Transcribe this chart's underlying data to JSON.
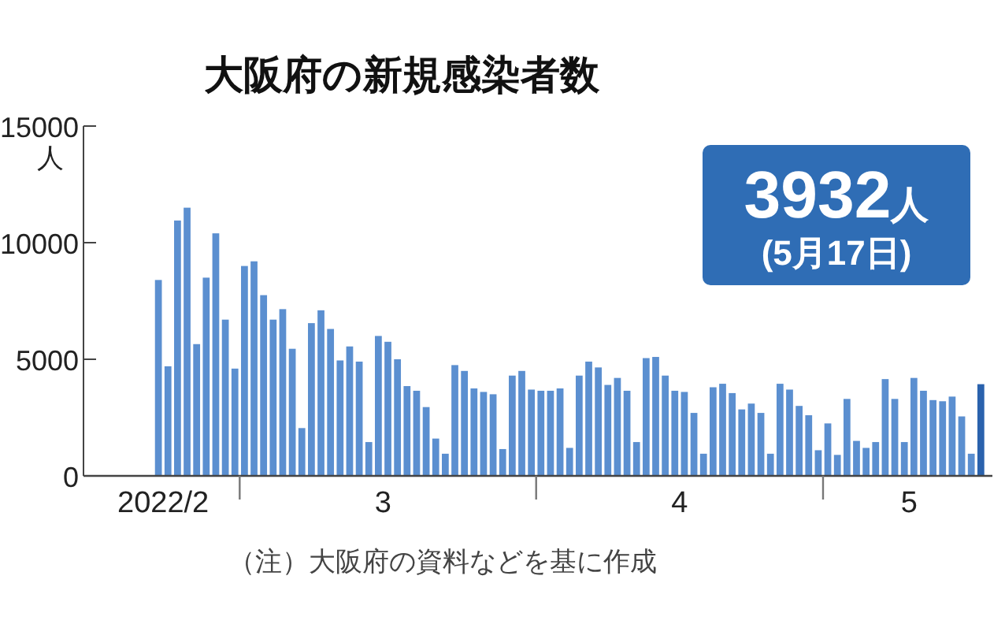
{
  "chart_data": {
    "type": "bar",
    "title": "大阪府の新規感染者数",
    "ylabel": "人",
    "annotations": [
      "3932人",
      "(5月17日)",
      "（注）大阪府の資料などを基に作成"
    ],
    "x": [
      "2022-02-20",
      "2022-02-21",
      "2022-02-22",
      "2022-02-23",
      "2022-02-24",
      "2022-02-25",
      "2022-02-26",
      "2022-02-27",
      "2022-02-28",
      "2022-03-01",
      "2022-03-02",
      "2022-03-03",
      "2022-03-04",
      "2022-03-05",
      "2022-03-06",
      "2022-03-07",
      "2022-03-08",
      "2022-03-09",
      "2022-03-10",
      "2022-03-11",
      "2022-03-12",
      "2022-03-13",
      "2022-03-14",
      "2022-03-15",
      "2022-03-16",
      "2022-03-17",
      "2022-03-18",
      "2022-03-19",
      "2022-03-20",
      "2022-03-21",
      "2022-03-22",
      "2022-03-23",
      "2022-03-24",
      "2022-03-25",
      "2022-03-26",
      "2022-03-27",
      "2022-03-28",
      "2022-03-29",
      "2022-03-30",
      "2022-03-31",
      "2022-04-01",
      "2022-04-02",
      "2022-04-03",
      "2022-04-04",
      "2022-04-05",
      "2022-04-06",
      "2022-04-07",
      "2022-04-08",
      "2022-04-09",
      "2022-04-10",
      "2022-04-11",
      "2022-04-12",
      "2022-04-13",
      "2022-04-14",
      "2022-04-15",
      "2022-04-16",
      "2022-04-17",
      "2022-04-18",
      "2022-04-19",
      "2022-04-20",
      "2022-04-21",
      "2022-04-22",
      "2022-04-23",
      "2022-04-24",
      "2022-04-25",
      "2022-04-26",
      "2022-04-27",
      "2022-04-28",
      "2022-04-29",
      "2022-04-30",
      "2022-05-01",
      "2022-05-02",
      "2022-05-03",
      "2022-05-04",
      "2022-05-05",
      "2022-05-06",
      "2022-05-07",
      "2022-05-08",
      "2022-05-09",
      "2022-05-10",
      "2022-05-11",
      "2022-05-12",
      "2022-05-13",
      "2022-05-14",
      "2022-05-15",
      "2022-05-16",
      "2022-05-17"
    ],
    "values": [
      8400,
      4700,
      10950,
      11500,
      5650,
      8500,
      10400,
      6700,
      4600,
      9000,
      9200,
      7750,
      6700,
      7150,
      5450,
      2050,
      6550,
      7100,
      6300,
      4950,
      5550,
      4900,
      1450,
      6000,
      5750,
      5000,
      3850,
      3650,
      2950,
      1600,
      950,
      4750,
      4500,
      3750,
      3600,
      3500,
      1150,
      4300,
      4500,
      3700,
      3650,
      3650,
      3750,
      1200,
      4300,
      4900,
      4650,
      3900,
      4200,
      3650,
      1450,
      5050,
      5100,
      4300,
      3650,
      3600,
      2700,
      950,
      3800,
      3950,
      3550,
      2850,
      3100,
      2700,
      950,
      3950,
      3700,
      3000,
      2600,
      1100,
      2250,
      900,
      3300,
      1500,
      1200,
      1450,
      4150,
      3300,
      1450,
      4200,
      3650,
      3250,
      3200,
      3400,
      2550,
      950,
      3932
    ],
    "colors": [
      "#5b8fd0",
      "#5b8fd0",
      "#5b8fd0",
      "#5b8fd0",
      "#5b8fd0",
      "#5b8fd0",
      "#5b8fd0",
      "#5b8fd0",
      "#5b8fd0",
      "#5b8fd0",
      "#5b8fd0",
      "#5b8fd0",
      "#5b8fd0",
      "#5b8fd0",
      "#5b8fd0",
      "#5b8fd0",
      "#5b8fd0",
      "#5b8fd0",
      "#5b8fd0",
      "#5b8fd0",
      "#5b8fd0",
      "#5b8fd0",
      "#5b8fd0",
      "#5b8fd0",
      "#5b8fd0",
      "#5b8fd0",
      "#5b8fd0",
      "#5b8fd0",
      "#5b8fd0",
      "#5b8fd0",
      "#5b8fd0",
      "#5b8fd0",
      "#5b8fd0",
      "#5b8fd0",
      "#5b8fd0",
      "#5b8fd0",
      "#5b8fd0",
      "#5b8fd0",
      "#5b8fd0",
      "#5b8fd0",
      "#5b8fd0",
      "#5b8fd0",
      "#5b8fd0",
      "#5b8fd0",
      "#5b8fd0",
      "#5b8fd0",
      "#5b8fd0",
      "#5b8fd0",
      "#5b8fd0",
      "#5b8fd0",
      "#5b8fd0",
      "#5b8fd0",
      "#5b8fd0",
      "#5b8fd0",
      "#5b8fd0",
      "#5b8fd0",
      "#5b8fd0",
      "#5b8fd0",
      "#5b8fd0",
      "#5b8fd0",
      "#5b8fd0",
      "#5b8fd0",
      "#5b8fd0",
      "#5b8fd0",
      "#5b8fd0",
      "#5b8fd0",
      "#5b8fd0",
      "#5b8fd0",
      "#5b8fd0",
      "#5b8fd0",
      "#5b8fd0",
      "#5b8fd0",
      "#5b8fd0",
      "#5b8fd0",
      "#5b8fd0",
      "#5b8fd0",
      "#5b8fd0",
      "#5b8fd0",
      "#5b8fd0",
      "#5b8fd0",
      "#5b8fd0",
      "#5b8fd0",
      "#5b8fd0",
      "#5b8fd0",
      "#5b8fd0",
      "#5b8fd0",
      "#2a62ad"
    ],
    "xlim": [
      "2022-02-12T16:00",
      "2022-05-18T17:00"
    ],
    "xticks": [
      {
        "value": "2022-02-21",
        "label": "2022/2"
      },
      {
        "value": "2022-03-01",
        "label": null
      },
      {
        "value": "2022-03-16",
        "label": "3"
      },
      {
        "value": "2022-04-01",
        "label": null
      },
      {
        "value": "2022-04-16",
        "label": "4"
      },
      {
        "value": "2022-05-01",
        "label": null
      },
      {
        "value": "2022-05-10",
        "label": "5"
      }
    ],
    "ylim": [
      0,
      15000
    ],
    "yticks": [
      0,
      5000,
      10000,
      15000
    ],
    "grid": false
  }
}
